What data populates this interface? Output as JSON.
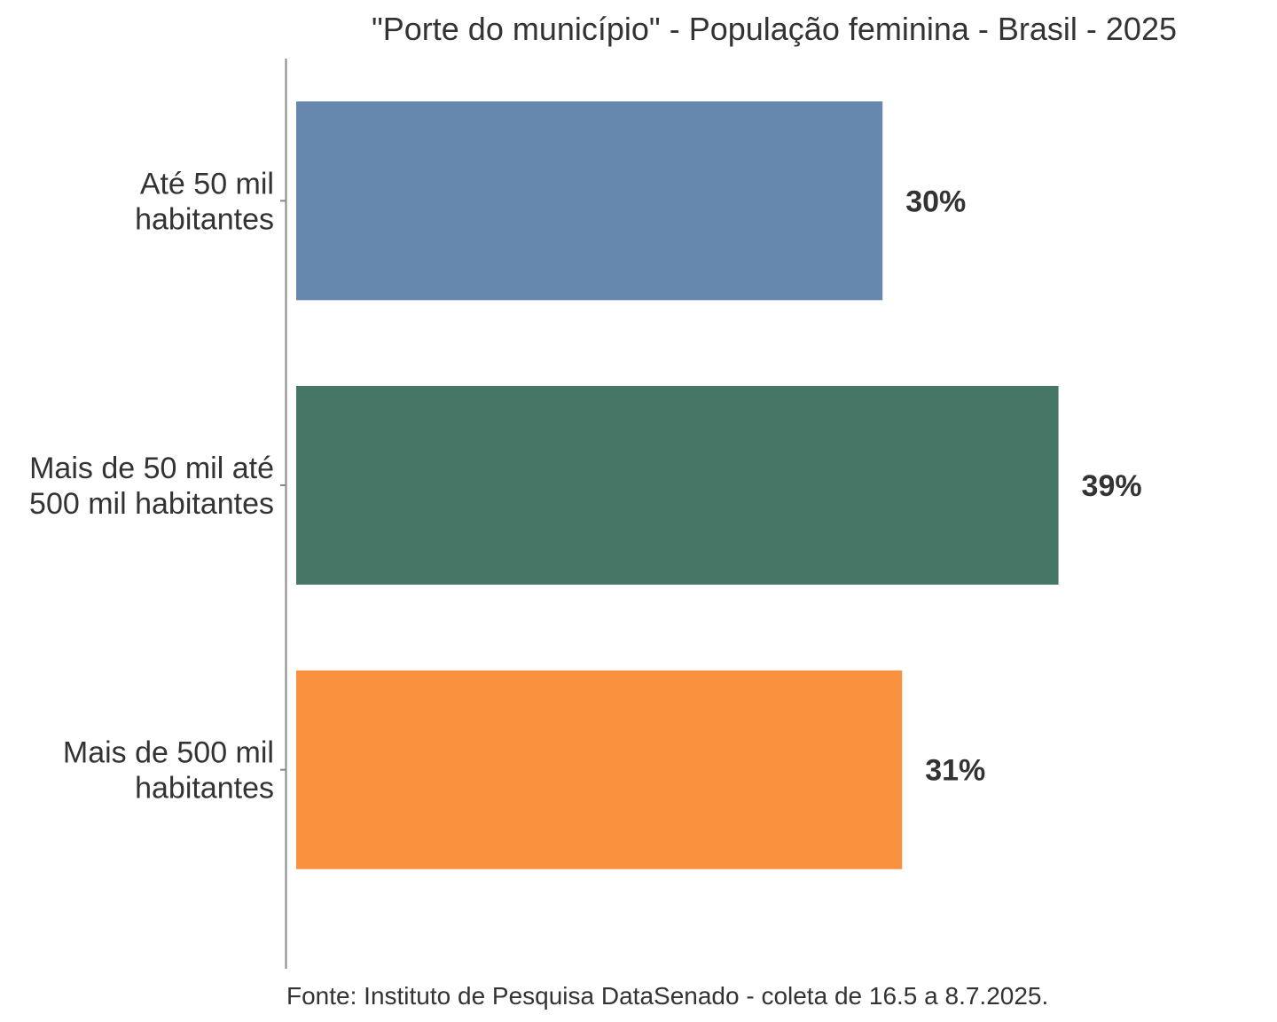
{
  "chart_data": {
    "type": "bar",
    "orientation": "horizontal",
    "title": "\"Porte do município\" - População feminina - Brasil - 2025",
    "categories": [
      [
        "Até 50 mil",
        "habitantes"
      ],
      [
        "Mais de 50 mil até",
        "500 mil habitantes"
      ],
      [
        "Mais de 500 mil",
        "habitantes"
      ]
    ],
    "values": [
      30,
      39,
      31
    ],
    "value_labels": [
      "30%",
      "39%",
      "31%"
    ],
    "colors": [
      "#6688AF",
      "#467665",
      "#F9913E"
    ],
    "xlim": [
      0,
      50
    ],
    "grid": false,
    "source": "Fonte: Instituto de Pesquisa DataSenado - coleta de 16.5 a 8.7.2025."
  }
}
